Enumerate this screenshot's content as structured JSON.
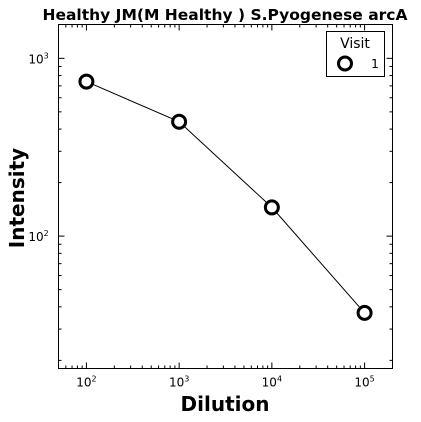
{
  "chart_data": {
    "type": "line",
    "title": "Healthy JM(M Healthy ) S.Pyogenese arcA",
    "xlabel": "Dilution",
    "ylabel": "Intensity",
    "x_scale": "log",
    "y_scale": "log",
    "xlim": [
      50,
      200000
    ],
    "ylim": [
      18,
      1550
    ],
    "x_ticks": [
      {
        "base": "10",
        "exp": "2"
      },
      {
        "base": "10",
        "exp": "3"
      },
      {
        "base": "10",
        "exp": "4"
      },
      {
        "base": "10",
        "exp": "5"
      }
    ],
    "y_ticks": [
      {
        "base": "10",
        "exp": "2"
      },
      {
        "base": "10",
        "exp": "3"
      }
    ],
    "grid": false,
    "legend": {
      "title": "Visit",
      "position": "top-right"
    },
    "series": [
      {
        "name": "1",
        "x": [
          100,
          1000,
          10000,
          100000
        ],
        "y": [
          740,
          440,
          145,
          37
        ],
        "marker": "open-circle",
        "color": "#000000"
      }
    ]
  }
}
